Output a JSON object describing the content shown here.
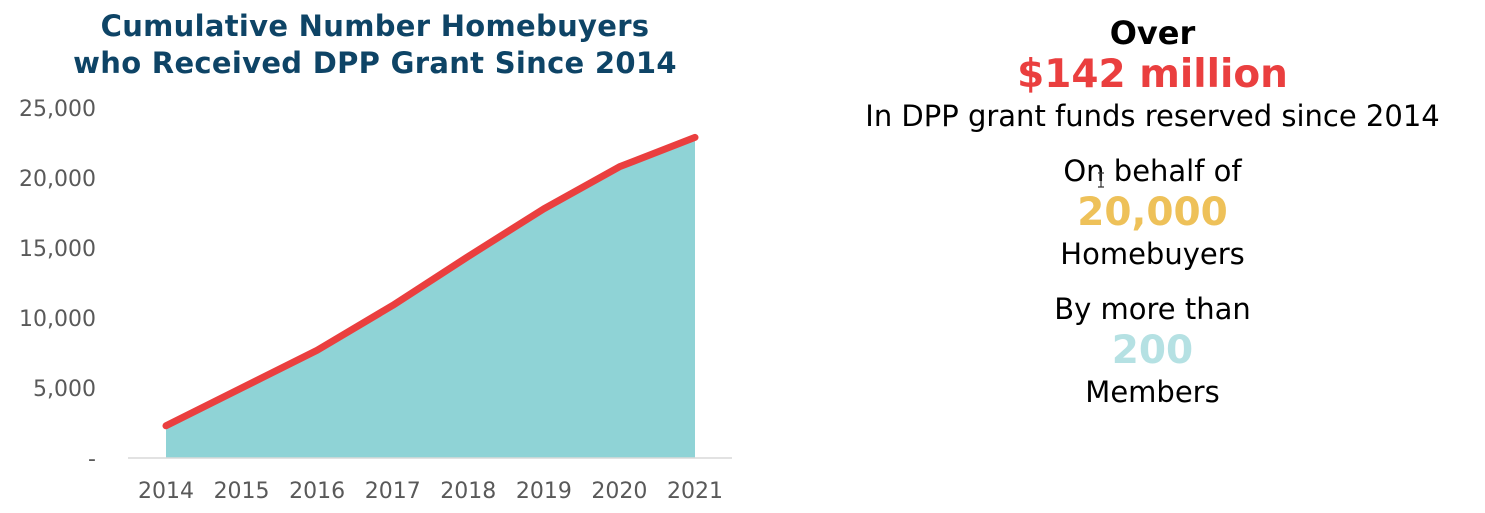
{
  "chart_data": {
    "type": "area",
    "title_lines": [
      "Cumulative Number Homebuyers",
      "who Received DPP Grant Since 2014"
    ],
    "x": [
      "2014",
      "2015",
      "2016",
      "2017",
      "2018",
      "2019",
      "2020",
      "2021"
    ],
    "values": [
      2300,
      5000,
      7700,
      10900,
      14400,
      17800,
      20800,
      22900
    ],
    "ylim": [
      0,
      25000
    ],
    "yticks": [
      0,
      5000,
      10000,
      15000,
      20000,
      25000
    ],
    "ytick_labels": [
      "-",
      "5,000",
      "10,000",
      "15,000",
      "20,000",
      "25,000"
    ],
    "xlabel": "",
    "ylabel": "",
    "grid": false,
    "colors": {
      "fill": "#8fd3d6",
      "line": "#ea3f3f",
      "axis": "#d9d9d9"
    }
  },
  "stats": {
    "over": "Over",
    "amount": "$142 million",
    "funds_text": "In DPP grant funds reserved since 2014",
    "behalf_text": "On behalf of",
    "homebuyers_count": "20,000",
    "homebuyers_label": "Homebuyers",
    "members_prefix": "By more than",
    "members_count": "200",
    "members_label": "Members",
    "colors": {
      "amount": "#ea3f3f",
      "homebuyers": "#eec159",
      "members": "#b5e1e3"
    }
  },
  "cursor_icon": "text-cursor-icon"
}
